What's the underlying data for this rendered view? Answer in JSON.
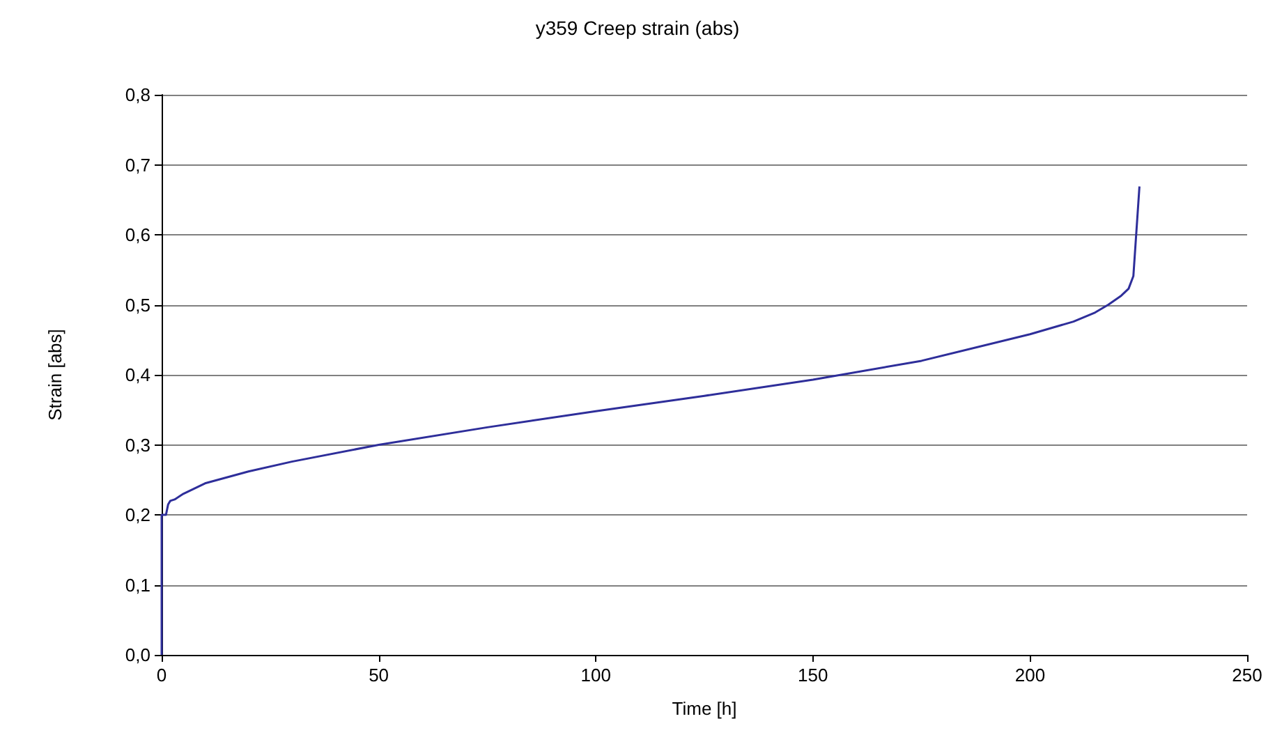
{
  "chart_data": {
    "type": "line",
    "title": "y359 Creep strain (abs)",
    "xlabel": "Time [h]",
    "ylabel": "Strain [abs]",
    "x": [
      0,
      0,
      1,
      1.5,
      2,
      3,
      5,
      10,
      20,
      30,
      50,
      75,
      100,
      125,
      150,
      175,
      200,
      210,
      215,
      218,
      221,
      222.7,
      223.8,
      225.2
    ],
    "series": [
      {
        "color": "#2e2e9a",
        "values": [
          0,
          0.2,
          0.2,
          0.215,
          0.22,
          0.222,
          0.23,
          0.245,
          0.262,
          0.276,
          0.3,
          0.325,
          0.348,
          0.37,
          0.393,
          0.42,
          0.458,
          0.476,
          0.489,
          0.5,
          0.513,
          0.523,
          0.541,
          0.669
        ]
      }
    ],
    "xlim": [
      0,
      250
    ],
    "xticks": [
      0,
      50,
      100,
      150,
      200,
      250
    ],
    "ylim": [
      0,
      0.8
    ],
    "yticks": [
      {
        "value": 0,
        "label": "0,0"
      },
      {
        "value": 0.1,
        "label": "0,1"
      },
      {
        "value": 0.2,
        "label": "0,2"
      },
      {
        "value": 0.3,
        "label": "0,3"
      },
      {
        "value": 0.4,
        "label": "0,4"
      },
      {
        "value": 0.5,
        "label": "0,5"
      },
      {
        "value": 0.6,
        "label": "0,6"
      },
      {
        "value": 0.7,
        "label": "0,7"
      },
      {
        "value": 0.8,
        "label": "0,8"
      }
    ],
    "grid": "y",
    "marker": "none",
    "line_style": "solid"
  }
}
